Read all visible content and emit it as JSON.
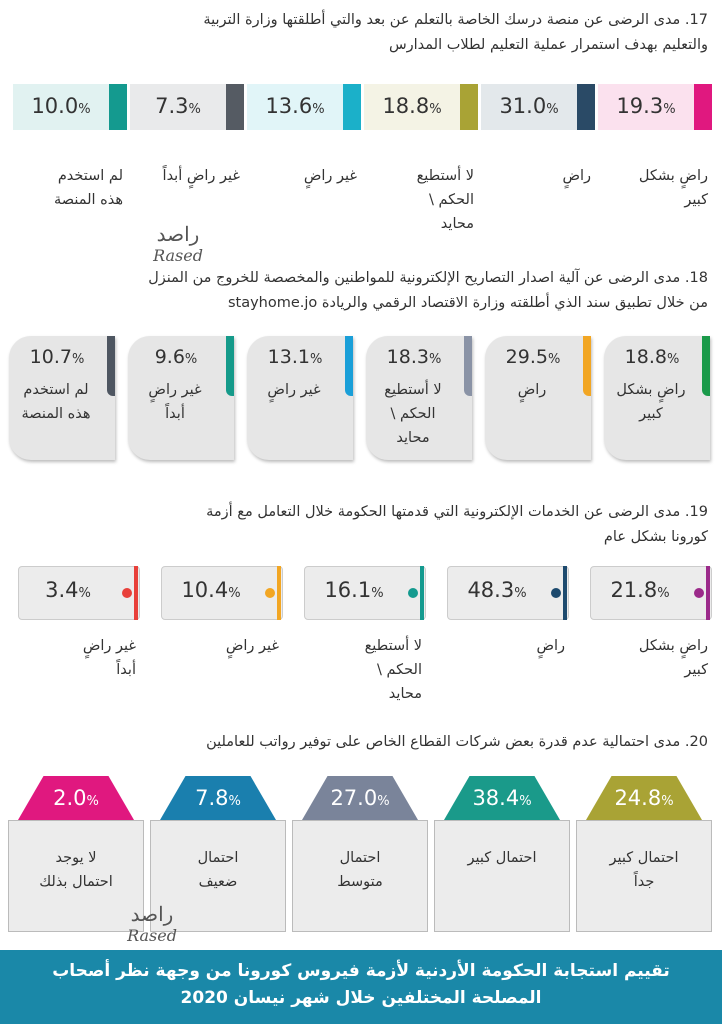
{
  "unit": "%",
  "sections": [
    {
      "title": [
        "17. مدى الرضى عن منصة درسك الخاصة بالتعلم عن بعد والتي أطلقتها وزارة التربية",
        "والتعليم بهدف استمرار عملية التعليم لطلاب المدارس"
      ],
      "items": [
        {
          "pct": "19.3",
          "label": [
            "راضٍ بشكل",
            "كبير"
          ],
          "color": "#e0187f"
        },
        {
          "pct": "31.0",
          "label": [
            "راضٍ"
          ],
          "color": "#2a4a66"
        },
        {
          "pct": "18.8",
          "label": [
            "لا أستطيع",
            "الحكم \\",
            "محايد"
          ],
          "color": "#a9a335"
        },
        {
          "pct": "13.6",
          "label": [
            "غير راضٍ"
          ],
          "color": "#1bb0c9"
        },
        {
          "pct": "7.3",
          "label": [
            "غير راضٍ أبداً"
          ],
          "color": "#555b63"
        },
        {
          "pct": "10.0",
          "label": [
            "لم استخدم",
            "هذه المنصة"
          ],
          "color": "#149a8f"
        }
      ]
    },
    {
      "title": [
        "18. مدى الرضى عن آلية اصدار التصاريح الإلكترونية للمواطنين والمخصصة للخروج من المنزل",
        "من خلال تطبيق سند الذي أطلقته وزارة الاقتصاد الرقمي والريادة stayhome.jo"
      ],
      "items": [
        {
          "pct": "18.8",
          "label": [
            "راضٍ بشكل",
            "كبير"
          ],
          "color": "#1a9a4a"
        },
        {
          "pct": "29.5",
          "label": [
            "راضٍ"
          ],
          "color": "#f2a623"
        },
        {
          "pct": "18.3",
          "label": [
            "لا أستطيع",
            "الحكم \\",
            "محايد"
          ],
          "color": "#8a93a6"
        },
        {
          "pct": "13.1",
          "label": [
            "غير راضٍ"
          ],
          "color": "#1a9fd8"
        },
        {
          "pct": "9.6",
          "label": [
            "غير راضٍ",
            "أبداً"
          ],
          "color": "#159a8a"
        },
        {
          "pct": "10.7",
          "label": [
            "لم استخدم",
            "هذه المنصة"
          ],
          "color": "#4e5661"
        }
      ]
    },
    {
      "title": [
        "19. مدى الرضى عن الخدمات الإلكترونية التي قدمتها الحكومة خلال التعامل مع أزمة",
        "كورونا بشكل عام"
      ],
      "items": [
        {
          "pct": "21.8",
          "label": [
            "راضٍ بشكل",
            "كبير"
          ],
          "color": "#9b2a8a"
        },
        {
          "pct": "48.3",
          "label": [
            "راضٍ"
          ],
          "color": "#1d4a6e"
        },
        {
          "pct": "16.1",
          "label": [
            "لا أستطيع",
            "الحكم \\",
            "محايد"
          ],
          "color": "#149a8f"
        },
        {
          "pct": "10.4",
          "label": [
            "غير راضٍ"
          ],
          "color": "#f2a623"
        },
        {
          "pct": "3.4",
          "label": [
            "غير راضٍ",
            "أبداً"
          ],
          "color": "#e8403a"
        }
      ]
    },
    {
      "title": [
        "20. مدى احتمالية عدم قدرة بعض شركات القطاع الخاص على توفير رواتب للعاملين"
      ],
      "items": [
        {
          "pct": "24.8",
          "label": [
            "احتمال كبير",
            "جداً"
          ],
          "color": "#a9a335"
        },
        {
          "pct": "38.4",
          "label": [
            "احتمال كبير"
          ],
          "color": "#1a9a8a"
        },
        {
          "pct": "27.0",
          "label": [
            "احتمال",
            "متوسط"
          ],
          "color": "#7a849a"
        },
        {
          "pct": "7.8",
          "label": [
            "احتمال",
            "ضعيف"
          ],
          "color": "#1a7fae"
        },
        {
          "pct": "2.0",
          "label": [
            "لا يوجد",
            "احتمال بذلك"
          ],
          "color": "#e0187f"
        }
      ]
    }
  ],
  "watermark": {
    "arabic": "راصد",
    "latin": "Rased"
  },
  "footer": [
    "تقييم استجابة الحكومة الأردنية لأزمة فيروس كورونا من وجهة نظر أصحاب",
    "المصلحة المختلفين خلال شهر نيسان 2020"
  ]
}
